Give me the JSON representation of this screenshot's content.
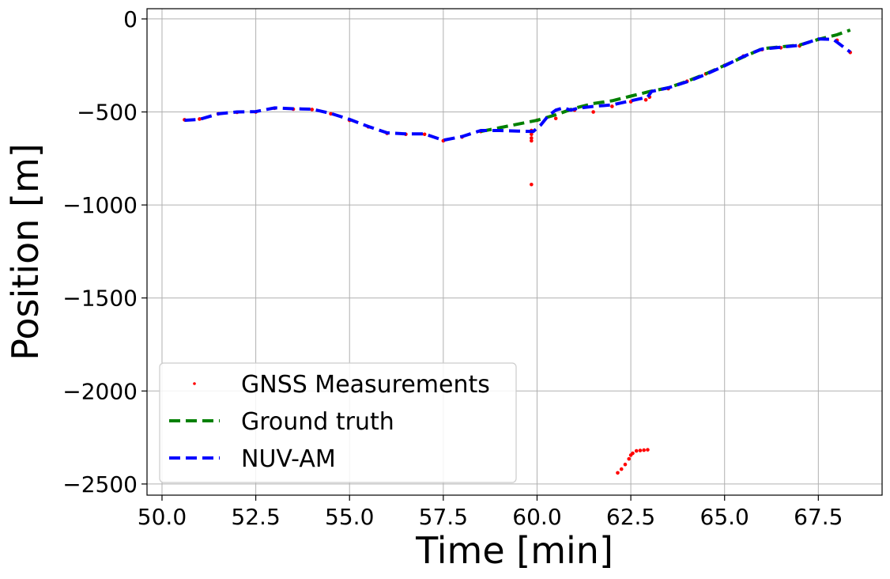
{
  "chart_data": {
    "type": "line",
    "xlabel": "Time [min]",
    "ylabel": "Position [m]",
    "xlim": [
      49.6,
      69.2
    ],
    "ylim": [
      -2560,
      55
    ],
    "xticks": [
      50.0,
      52.5,
      55.0,
      57.5,
      60.0,
      62.5,
      65.0,
      67.5
    ],
    "xtick_labels": [
      "50.0",
      "52.5",
      "55.0",
      "57.5",
      "60.0",
      "62.5",
      "65.0",
      "67.5"
    ],
    "yticks": [
      0,
      -500,
      -1000,
      -1500,
      -2000,
      -2500
    ],
    "ytick_labels": [
      "0",
      "−500",
      "−1000",
      "−1500",
      "−2000",
      "−2500"
    ],
    "grid": true,
    "legend_position": "lower-left",
    "series": [
      {
        "name": "GNSS Measurements",
        "style": "points",
        "color": "#ff0000",
        "points": [
          [
            50.6,
            -542
          ],
          [
            51.0,
            -538
          ],
          [
            51.5,
            -510
          ],
          [
            52.0,
            -502
          ],
          [
            52.5,
            -500
          ],
          [
            53.0,
            -480
          ],
          [
            53.5,
            -485
          ],
          [
            54.0,
            -487
          ],
          [
            54.5,
            -510
          ],
          [
            55.0,
            -545
          ],
          [
            55.5,
            -580
          ],
          [
            56.0,
            -615
          ],
          [
            56.5,
            -620
          ],
          [
            57.0,
            -620
          ],
          [
            57.5,
            -655
          ],
          [
            58.0,
            -635
          ],
          [
            58.5,
            -605
          ],
          [
            59.85,
            -600
          ],
          [
            59.85,
            -620
          ],
          [
            59.85,
            -640
          ],
          [
            59.85,
            -655
          ],
          [
            59.85,
            -890
          ],
          [
            60.0,
            -545
          ],
          [
            60.5,
            -535
          ],
          [
            61.0,
            -490
          ],
          [
            61.5,
            -500
          ],
          [
            62.0,
            -470
          ],
          [
            62.5,
            -445
          ],
          [
            62.9,
            -435
          ],
          [
            63.0,
            -420
          ],
          [
            63.5,
            -375
          ],
          [
            64.0,
            -335
          ],
          [
            64.5,
            -295
          ],
          [
            65.0,
            -250
          ],
          [
            65.5,
            -200
          ],
          [
            66.0,
            -165
          ],
          [
            66.5,
            -155
          ],
          [
            67.0,
            -145
          ],
          [
            67.5,
            -110
          ],
          [
            68.0,
            -115
          ],
          [
            68.35,
            -180
          ],
          [
            62.15,
            -2440
          ],
          [
            62.25,
            -2420
          ],
          [
            62.35,
            -2395
          ],
          [
            62.45,
            -2365
          ],
          [
            62.5,
            -2345
          ],
          [
            62.55,
            -2335
          ],
          [
            62.65,
            -2322
          ],
          [
            62.75,
            -2320
          ],
          [
            62.85,
            -2318
          ],
          [
            62.95,
            -2316
          ]
        ]
      },
      {
        "name": "Ground truth",
        "style": "dashed",
        "color": "#008000",
        "points": [
          [
            58.5,
            -605
          ],
          [
            59.0,
            -585
          ],
          [
            59.5,
            -565
          ],
          [
            60.0,
            -545
          ],
          [
            60.5,
            -515
          ],
          [
            61.0,
            -480
          ],
          [
            61.5,
            -455
          ],
          [
            62.0,
            -440
          ],
          [
            62.5,
            -415
          ],
          [
            63.0,
            -390
          ],
          [
            63.5,
            -370
          ],
          [
            64.0,
            -335
          ],
          [
            64.5,
            -295
          ],
          [
            65.0,
            -250
          ],
          [
            65.5,
            -205
          ],
          [
            66.0,
            -160
          ],
          [
            66.5,
            -150
          ],
          [
            67.0,
            -140
          ],
          [
            67.5,
            -110
          ],
          [
            68.0,
            -85
          ],
          [
            68.35,
            -60
          ]
        ]
      },
      {
        "name": "NUV-AM",
        "style": "dashed",
        "color": "#0000ff",
        "points": [
          [
            50.6,
            -545
          ],
          [
            51.0,
            -540
          ],
          [
            51.5,
            -510
          ],
          [
            52.0,
            -500
          ],
          [
            52.5,
            -498
          ],
          [
            53.0,
            -478
          ],
          [
            53.5,
            -483
          ],
          [
            54.0,
            -485
          ],
          [
            54.5,
            -508
          ],
          [
            55.0,
            -540
          ],
          [
            55.5,
            -578
          ],
          [
            56.0,
            -612
          ],
          [
            56.5,
            -618
          ],
          [
            57.0,
            -618
          ],
          [
            57.5,
            -652
          ],
          [
            58.0,
            -632
          ],
          [
            58.5,
            -600
          ],
          [
            59.0,
            -600
          ],
          [
            59.5,
            -603
          ],
          [
            59.9,
            -605
          ],
          [
            60.1,
            -570
          ],
          [
            60.3,
            -520
          ],
          [
            60.5,
            -490
          ],
          [
            60.7,
            -478
          ],
          [
            60.9,
            -490
          ],
          [
            61.1,
            -480
          ],
          [
            61.5,
            -470
          ],
          [
            62.0,
            -462
          ],
          [
            62.5,
            -440
          ],
          [
            62.95,
            -420
          ],
          [
            63.05,
            -390
          ],
          [
            63.5,
            -370
          ],
          [
            64.0,
            -338
          ],
          [
            64.5,
            -298
          ],
          [
            65.0,
            -252
          ],
          [
            65.5,
            -202
          ],
          [
            66.0,
            -162
          ],
          [
            66.5,
            -152
          ],
          [
            67.0,
            -142
          ],
          [
            67.5,
            -108
          ],
          [
            67.9,
            -110
          ],
          [
            68.35,
            -178
          ]
        ]
      }
    ]
  }
}
